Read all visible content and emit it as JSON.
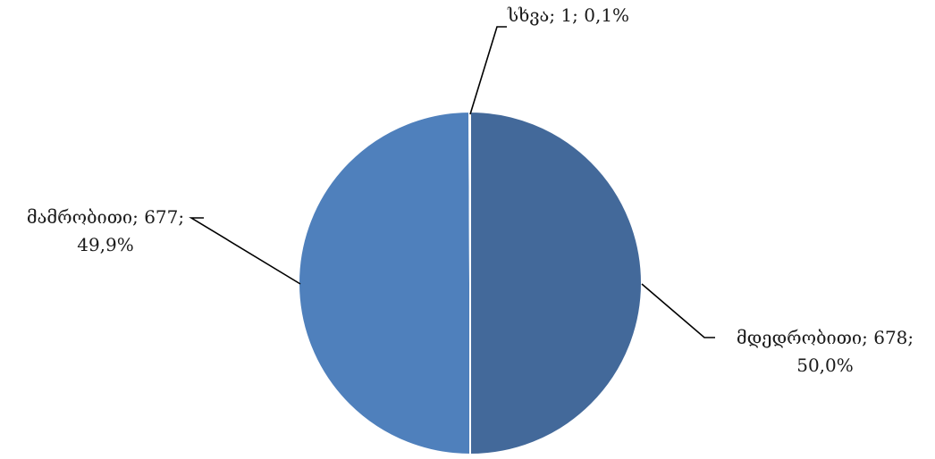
{
  "chart_data": {
    "type": "pie",
    "slices": [
      {
        "label": "მდედრობითი",
        "value": 678,
        "percent": "50,0%",
        "color": "#43699A"
      },
      {
        "label": "მამრობითი",
        "value": 677,
        "percent": "49,9%",
        "color": "#4F80BC"
      },
      {
        "label": "სხვა",
        "value": 1,
        "percent": "0,1%",
        "color": "#BE4B48"
      }
    ],
    "labels": {
      "female_line1": "მდედრობითი; 678;",
      "female_line2": "50,0%",
      "male_line1": "მამრობითი; 677;",
      "male_line2": "49,9%",
      "other": "სხვა; 1; 0,1%"
    },
    "title": "",
    "legend": "none"
  }
}
